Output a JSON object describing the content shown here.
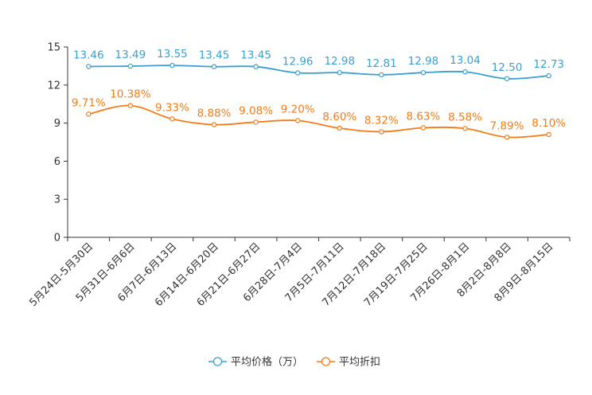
{
  "chart_data": {
    "type": "line",
    "title": "",
    "xlabel": "",
    "ylabel": "",
    "ylim": [
      0,
      15
    ],
    "yticks": [
      0,
      3,
      6,
      9,
      12,
      15
    ],
    "legend_position": "bottom-center",
    "categories": [
      "5月24日-5月30日",
      "5月31日-6月6日",
      "6月7日-6月13日",
      "6月14日-6月20日",
      "6月21日-6月27日",
      "6月28日-7月4日",
      "7月5日-7月11日",
      "7月12日-7月18日",
      "7月19日-7月25日",
      "7月26日-8月1日",
      "8月2日-8月8日",
      "8月9日-8月15日"
    ],
    "series": [
      {
        "name": "平均价格（万）",
        "color": "#3a9fd0",
        "values": [
          13.46,
          13.49,
          13.55,
          13.45,
          13.45,
          12.96,
          12.98,
          12.81,
          12.98,
          13.04,
          12.5,
          12.73
        ],
        "labels": [
          "13.46",
          "13.49",
          "13.55",
          "13.45",
          "13.45",
          "12.96",
          "12.98",
          "12.81",
          "12.98",
          "13.04",
          "12.50",
          "12.73"
        ]
      },
      {
        "name": "平均折扣",
        "color": "#f47b16",
        "values": [
          9.71,
          10.38,
          9.33,
          8.88,
          9.08,
          9.2,
          8.6,
          8.32,
          8.63,
          8.58,
          7.89,
          8.1
        ],
        "labels": [
          "9.71%",
          "10.38%",
          "9.33%",
          "8.88%",
          "9.08%",
          "9.20%",
          "8.60%",
          "8.32%",
          "8.63%",
          "8.58%",
          "7.89%",
          "8.10%"
        ]
      }
    ]
  }
}
